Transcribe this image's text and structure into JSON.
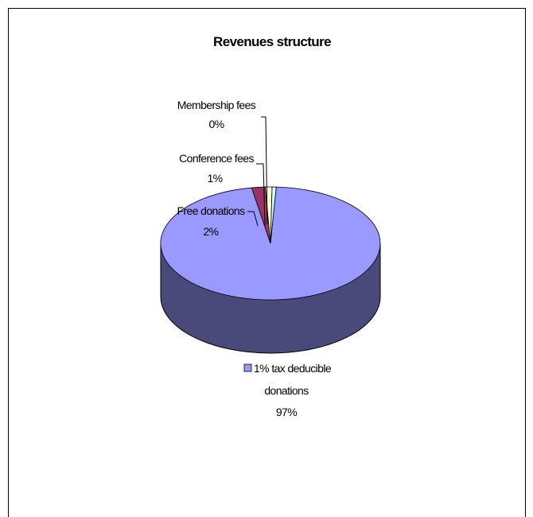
{
  "chart_data": {
    "type": "pie",
    "title": "Revenues structure",
    "slices": [
      {
        "name": "1% tax deducible donations",
        "value": 97,
        "value_label": "97%",
        "color": "#9999ff"
      },
      {
        "name": "Free donations",
        "value": 2,
        "value_label": "2%",
        "color": "#993366"
      },
      {
        "name": "Conference fees",
        "value": 1,
        "value_label": "1%",
        "color": "#ffffcc"
      },
      {
        "name": "Membership fees",
        "value": 0,
        "value_label": "0%",
        "color": "#ccffff"
      }
    ],
    "legend_key": "1% tax deducible donations",
    "pie_style": "3d"
  }
}
